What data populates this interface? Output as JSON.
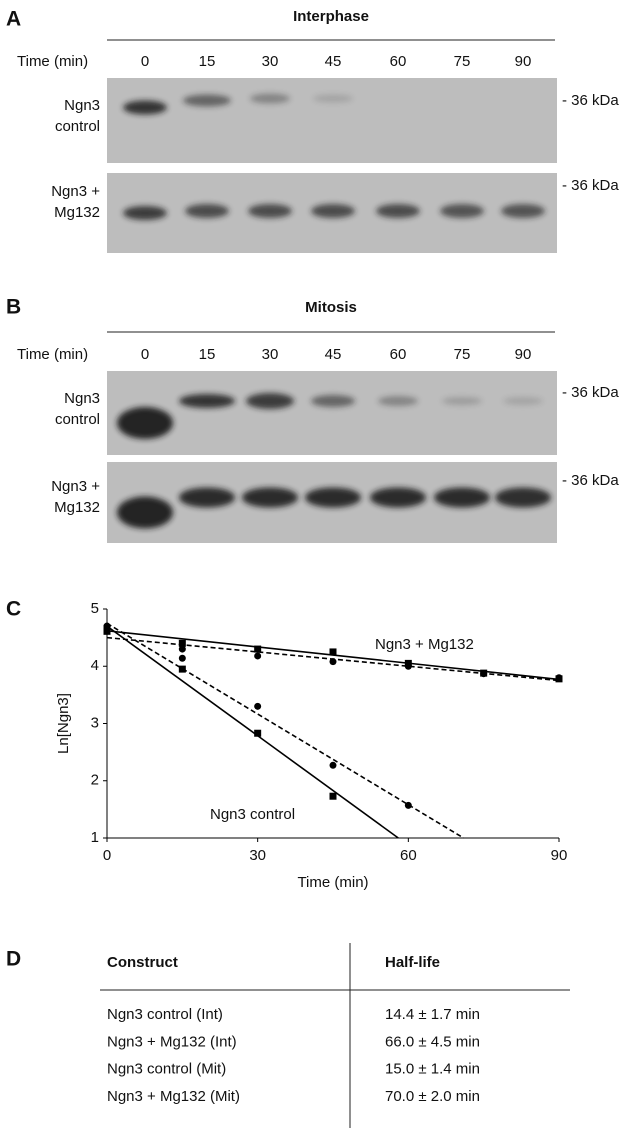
{
  "panels": [
    {
      "label": "A",
      "title": "Interphase",
      "time_label": "Time (min)",
      "times": [
        0,
        15,
        30,
        45,
        60,
        75,
        90
      ],
      "rows": [
        {
          "label_lines": [
            "Ngn3",
            "control"
          ],
          "marker": "- 36 kDa"
        },
        {
          "label_lines": [
            "Ngn3 +",
            "Mg132"
          ],
          "marker": "- 36 kDa"
        }
      ]
    },
    {
      "label": "B",
      "title": "Mitosis",
      "time_label": "Time (min)",
      "times": [
        0,
        15,
        30,
        45,
        60,
        75,
        90
      ],
      "rows": [
        {
          "label_lines": [
            "Ngn3",
            "control"
          ],
          "marker": "- 36 kDa"
        },
        {
          "label_lines": [
            "Ngn3 +",
            "Mg132"
          ],
          "marker": "- 36 kDa"
        }
      ]
    }
  ],
  "chart_label": "C",
  "chart_data": {
    "type": "scatter",
    "x_label": "Time (min)",
    "y_label": "Ln[Ngn3]",
    "xlim": [
      0,
      90
    ],
    "xticks": [
      0,
      30,
      60,
      90
    ],
    "ylim": [
      1,
      5
    ],
    "yticks": [
      1,
      2,
      3,
      4,
      5
    ],
    "annotations": [
      "Ngn3 + Mg132",
      "Ngn3 control"
    ],
    "series": [
      {
        "marker": "square",
        "line_style": "solid",
        "color": "#000000",
        "x": [
          0,
          15,
          30,
          45
        ],
        "values": [
          4.61,
          3.95,
          2.83,
          1.73
        ],
        "fit_x": [
          0,
          58
        ],
        "fit_values": [
          4.7,
          1
        ]
      },
      {
        "marker": "circle",
        "line_style": "dashed",
        "color": "#000000",
        "x": [
          0,
          15,
          30,
          45,
          60
        ],
        "values": [
          4.7,
          4.14,
          3.3,
          2.27,
          1.57
        ],
        "fit_x": [
          0,
          71
        ],
        "fit_values": [
          4.75,
          1
        ]
      },
      {
        "marker": "square",
        "line_style": "solid",
        "color": "#000000",
        "x": [
          0,
          15,
          30,
          45,
          60,
          75,
          90
        ],
        "values": [
          4.62,
          4.4,
          4.3,
          4.25,
          4.05,
          3.88,
          3.78
        ],
        "fit_x": [
          0,
          90
        ],
        "fit_values": [
          4.62,
          3.77
        ]
      },
      {
        "marker": "circle",
        "line_style": "dashed",
        "color": "#000000",
        "x": [
          0,
          15,
          30,
          45,
          60,
          75,
          90
        ],
        "values": [
          4.7,
          4.3,
          4.18,
          4.08,
          4.0,
          3.87,
          3.8
        ],
        "fit_x": [
          0,
          90
        ],
        "fit_values": [
          4.5,
          3.75
        ]
      }
    ]
  },
  "table": {
    "label": "D",
    "header": [
      "Construct",
      "Half-life"
    ],
    "rows": [
      [
        "Ngn3 control (Int)",
        "14.4 ± 1.7 min"
      ],
      [
        "Ngn3 + Mg132 (Int)",
        "66.0 ± 4.5 min"
      ],
      [
        "Ngn3 control (Mit)",
        "15.0 ± 1.4 min"
      ],
      [
        "Ngn3 + Mg132 (Mit)",
        "70.0 ± 2.0 min"
      ]
    ]
  }
}
